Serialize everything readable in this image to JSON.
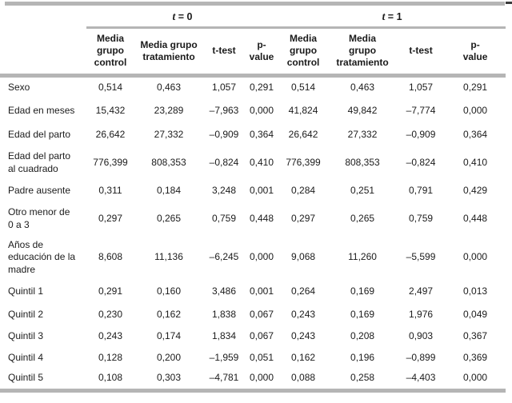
{
  "colors": {
    "rule_gray": "#b5b5b5",
    "text": "#1b1b1b"
  },
  "table": {
    "group_headers": [
      {
        "t": "t",
        "rest": " = 0"
      },
      {
        "t": "t",
        "rest": " = 1"
      }
    ],
    "col_headers": [
      "Media\ngrupo\ncontrol",
      "Media grupo\ntratamiento",
      "t-test",
      "p-\nvalue",
      "Media\ngrupo\ncontrol",
      "Media\ngrupo\ntratamiento",
      "t-test",
      "p-\nvalue"
    ],
    "rows": [
      {
        "label": "Sexo",
        "values": [
          "0,514",
          "0,463",
          "1,057",
          "0,291",
          "0,514",
          "0,463",
          "1,057",
          "0,291"
        ]
      },
      {
        "label": "Edad en meses",
        "values": [
          "15,432",
          "23,289",
          "–7,963",
          "0,000",
          "41,824",
          "49,842",
          "–7,774",
          "0,000"
        ]
      },
      {
        "label": "Edad del parto",
        "values": [
          "26,642",
          "27,332",
          "–0,909",
          "0,364",
          "26,642",
          "27,332",
          "–0,909",
          "0,364"
        ]
      },
      {
        "label": "Edad del parto\nal cuadrado",
        "values": [
          "776,399",
          "808,353",
          "–0,824",
          "0,410",
          "776,399",
          "808,353",
          "–0,824",
          "0,410"
        ]
      },
      {
        "label": "Padre ausente",
        "values": [
          "0,311",
          "0,184",
          "3,248",
          "0,001",
          "0,284",
          "0,251",
          "0,791",
          "0,429"
        ]
      },
      {
        "label": "Otro menor de\n0 a 3",
        "values": [
          "0,297",
          "0,265",
          "0,759",
          "0,448",
          "0,297",
          "0,265",
          "0,759",
          "0,448"
        ]
      },
      {
        "label": "Años de\neducación de la\nmadre",
        "values": [
          "8,608",
          "11,136",
          "–6,245",
          "0,000",
          "9,068",
          "11,260",
          "–5,599",
          "0,000"
        ]
      },
      {
        "label": "Quintil 1",
        "values": [
          "0,291",
          "0,160",
          "3,486",
          "0,001",
          "0,264",
          "0,169",
          "2,497",
          "0,013"
        ]
      },
      {
        "label": "Quintil 2",
        "values": [
          "0,230",
          "0,162",
          "1,838",
          "0,067",
          "0,243",
          "0,169",
          "1,976",
          "0,049"
        ]
      },
      {
        "label": "Quintil 3",
        "values": [
          "0,243",
          "0,174",
          "1,834",
          "0,067",
          "0,243",
          "0,208",
          "0,903",
          "0,367"
        ]
      },
      {
        "label": "Quintil 4",
        "values": [
          "0,128",
          "0,200",
          "–1,959",
          "0,051",
          "0,162",
          "0,196",
          "–0,899",
          "0,369"
        ]
      },
      {
        "label": "Quintil 5",
        "values": [
          "0,108",
          "0,303",
          "–4,781",
          "0,000",
          "0,088",
          "0,258",
          "–4,403",
          "0,000"
        ]
      }
    ]
  }
}
